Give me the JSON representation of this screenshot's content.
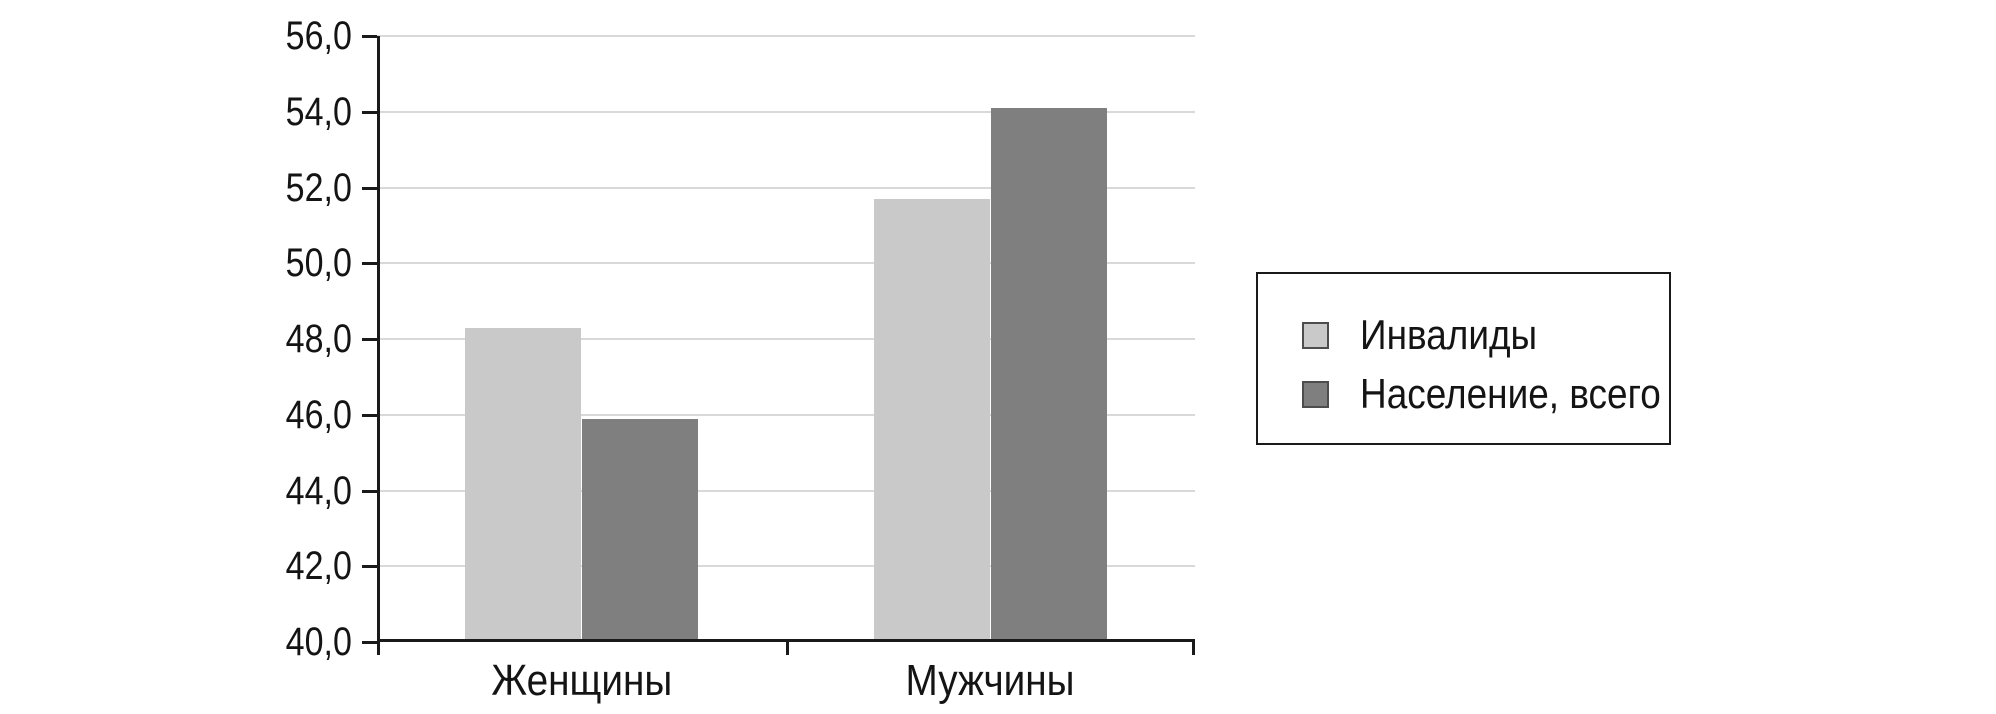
{
  "chart_data": {
    "type": "bar",
    "title": "",
    "xlabel": "",
    "ylabel": "",
    "categories": [
      "Женщины",
      "Мужчины"
    ],
    "series": [
      {
        "name": "Инвалиды",
        "color": "#c9c9c9",
        "values": [
          48.3,
          51.7
        ]
      },
      {
        "name": "Население, всего",
        "color": "#7f7f7f",
        "values": [
          45.9,
          54.1
        ]
      }
    ],
    "ylim": [
      40,
      56
    ],
    "ytick_step": 2,
    "ytick_labels": [
      "40,0",
      "42,0",
      "44,0",
      "46,0",
      "48,0",
      "50,0",
      "52,0",
      "54,0",
      "56,0"
    ],
    "grid": true,
    "gridline_color": "#d9d9d9",
    "axis_color": "#1a1a1a",
    "legend_position": "right",
    "legend_border_color": "#1a1a1a"
  }
}
